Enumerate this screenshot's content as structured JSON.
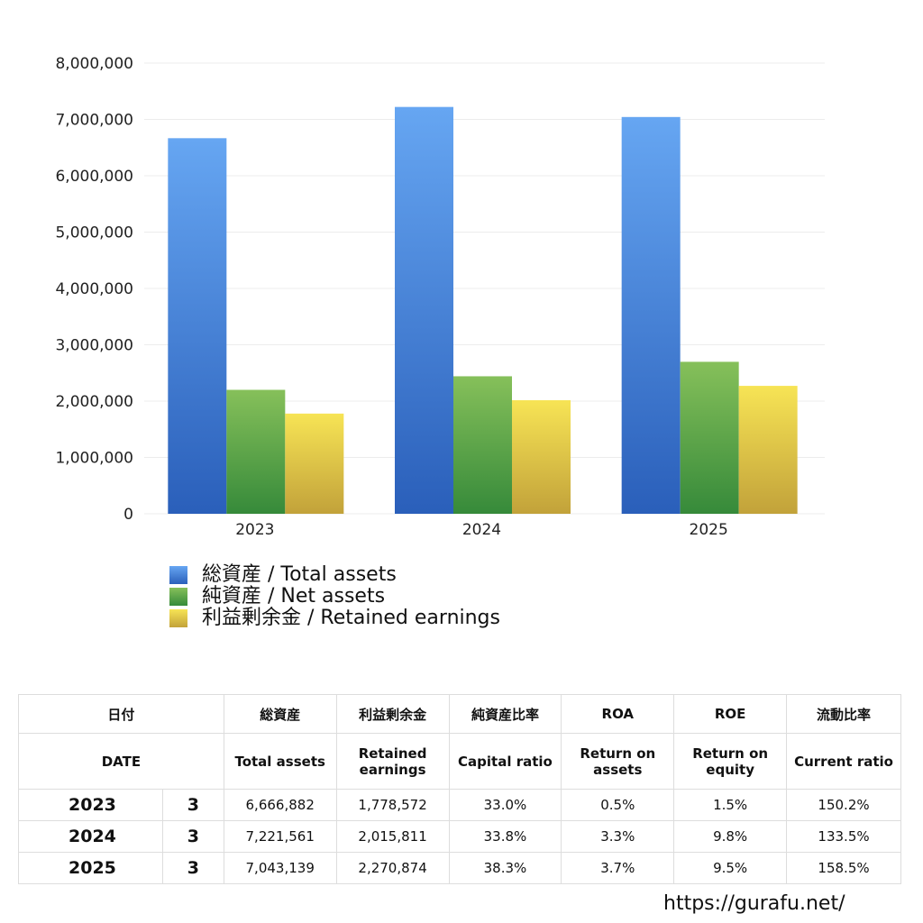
{
  "chart_data": {
    "type": "bar",
    "categories": [
      "2023",
      "2024",
      "2025"
    ],
    "series": [
      {
        "name": "総資産 / Total assets",
        "values": [
          6666882,
          7221561,
          7043139
        ],
        "color_top": "#66a6f2",
        "color_bottom": "#2a5fba"
      },
      {
        "name": "純資産 / Net assets",
        "values": [
          2200071,
          2440888,
          2697522
        ],
        "color_top": "#86c05a",
        "color_bottom": "#368a3a"
      },
      {
        "name": "利益剰余金 / Retained earnings",
        "values": [
          1778572,
          2015811,
          2270874
        ],
        "color_top": "#f7e455",
        "color_bottom": "#c2a23a"
      }
    ],
    "ylim": [
      0,
      8000000
    ],
    "yticks": [
      "0",
      "1,000,000",
      "2,000,000",
      "3,000,000",
      "4,000,000",
      "5,000,000",
      "6,000,000",
      "7,000,000",
      "8,000,000"
    ],
    "grid": true,
    "legend": "bottom-left"
  },
  "table": {
    "header_jp": [
      "日付",
      "総資産",
      "利益剰余金",
      "純資産比率",
      "ROA",
      "ROE",
      "流動比率"
    ],
    "header_en": [
      "DATE",
      "Total assets",
      "Retained earnings",
      "Capital ratio",
      "Return on assets",
      "Return on equity",
      "Current ratio"
    ],
    "rows": [
      [
        "2023",
        "3",
        "6,666,882",
        "1,778,572",
        "33.0%",
        "0.5%",
        "1.5%",
        "150.2%"
      ],
      [
        "2024",
        "3",
        "7,221,561",
        "2,015,811",
        "33.8%",
        "3.3%",
        "9.8%",
        "133.5%"
      ],
      [
        "2025",
        "3",
        "7,043,139",
        "2,270,874",
        "38.3%",
        "3.7%",
        "9.5%",
        "158.5%"
      ]
    ]
  },
  "watermark": "https://gurafu.net/"
}
